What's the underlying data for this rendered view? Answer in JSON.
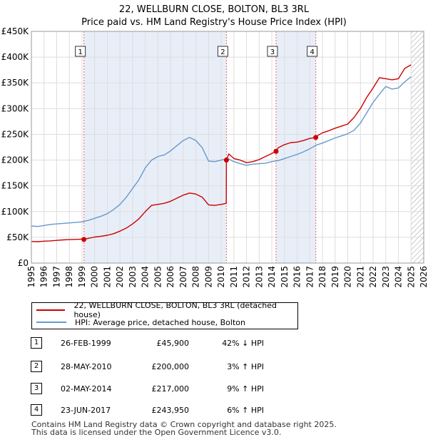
{
  "title_line1": "22, WELLBURN CLOSE, BOLTON, BL3 3RL",
  "title_line2": "Price paid vs. HM Land Registry's House Price Index (HPI)",
  "chart_data": {
    "type": "line",
    "title": "22, WELLBURN CLOSE, BOLTON, BL3 3RL",
    "subtitle": "Price paid vs. HM Land Registry's House Price Index (HPI)",
    "xlim": [
      1995,
      2026
    ],
    "ylim": [
      0,
      450000
    ],
    "x_ticks": [
      1995,
      1996,
      1997,
      1998,
      1999,
      2000,
      2001,
      2002,
      2003,
      2004,
      2005,
      2006,
      2007,
      2008,
      2009,
      2010,
      2011,
      2012,
      2013,
      2014,
      2015,
      2016,
      2017,
      2018,
      2019,
      2020,
      2021,
      2022,
      2023,
      2024,
      2025,
      2026
    ],
    "x_tick_labels": [
      "1995",
      "1996",
      "1997",
      "1998",
      "1999",
      "2000",
      "2001",
      "2002",
      "2003",
      "2004",
      "2005",
      "2006",
      "2007",
      "2008",
      "2009",
      "2010",
      "2011",
      "2012",
      "2013",
      "2014",
      "2015",
      "2016",
      "2017",
      "2018",
      "2019",
      "2020",
      "2021",
      "2022",
      "2023",
      "2024",
      "2025",
      "2026"
    ],
    "y_ticks": [
      0,
      50000,
      100000,
      150000,
      200000,
      250000,
      300000,
      350000,
      400000,
      450000
    ],
    "y_tick_labels": [
      "£0",
      "£50K",
      "£100K",
      "£150K",
      "£200K",
      "£250K",
      "£300K",
      "£350K",
      "£400K",
      "£450K"
    ],
    "grid": true,
    "colors": {
      "property": "#cc0000",
      "hpi": "#6699cc",
      "shade": "#e8eef8",
      "marker_line": "#ee6666"
    },
    "series": [
      {
        "name": "22, WELLBURN CLOSE, BOLTON, BL3 3RL (detached house)",
        "x": [
          1995.0,
          1995.5,
          1996.0,
          1996.5,
          1997.0,
          1997.5,
          1998.0,
          1998.5,
          1999.0,
          1999.15,
          1999.5,
          2000.0,
          2000.5,
          2001.0,
          2001.5,
          2002.0,
          2002.5,
          2003.0,
          2003.5,
          2004.0,
          2004.5,
          2005.0,
          2005.5,
          2006.0,
          2006.5,
          2007.0,
          2007.5,
          2008.0,
          2008.5,
          2009.0,
          2009.5,
          2010.0,
          2010.4,
          2010.41,
          2010.6,
          2011.0,
          2011.5,
          2012.0,
          2012.5,
          2013.0,
          2013.5,
          2014.0,
          2014.33,
          2014.5,
          2015.0,
          2015.5,
          2016.0,
          2016.5,
          2017.0,
          2017.47,
          2017.5,
          2018.0,
          2018.5,
          2019.0,
          2019.5,
          2020.0,
          2020.5,
          2021.0,
          2021.5,
          2022.0,
          2022.5,
          2023.0,
          2023.5,
          2024.0,
          2024.5,
          2025.0
        ],
        "values": [
          42000,
          41500,
          42500,
          43000,
          44000,
          45000,
          45500,
          46000,
          46500,
          45900,
          48000,
          50500,
          52000,
          54000,
          57000,
          62000,
          68000,
          76000,
          86000,
          100000,
          112000,
          114000,
          116000,
          120000,
          126000,
          132000,
          136000,
          134000,
          128000,
          113000,
          112000,
          114000,
          116000,
          200000,
          212000,
          203000,
          200000,
          195000,
          197000,
          201000,
          207000,
          213000,
          217000,
          224000,
          230000,
          234000,
          235000,
          238000,
          242000,
          243950,
          246000,
          253000,
          257000,
          262000,
          266000,
          270000,
          283000,
          300000,
          322000,
          340000,
          360000,
          358000,
          356000,
          358000,
          378000,
          385000
        ]
      },
      {
        "name": "HPI: Average price, detached house, Bolton",
        "x": [
          1995.0,
          1995.5,
          1996.0,
          1996.5,
          1997.0,
          1997.5,
          1998.0,
          1998.5,
          1999.0,
          1999.5,
          2000.0,
          2000.5,
          2001.0,
          2001.5,
          2002.0,
          2002.5,
          2003.0,
          2003.5,
          2004.0,
          2004.5,
          2005.0,
          2005.5,
          2006.0,
          2006.5,
          2007.0,
          2007.5,
          2008.0,
          2008.5,
          2009.0,
          2009.5,
          2010.0,
          2010.5,
          2011.0,
          2011.5,
          2012.0,
          2012.5,
          2013.0,
          2013.5,
          2014.0,
          2014.5,
          2015.0,
          2015.5,
          2016.0,
          2016.5,
          2017.0,
          2017.5,
          2018.0,
          2018.5,
          2019.0,
          2019.5,
          2020.0,
          2020.5,
          2021.0,
          2021.5,
          2022.0,
          2022.5,
          2023.0,
          2023.5,
          2024.0,
          2024.5,
          2025.0
        ],
        "values": [
          72000,
          71000,
          73000,
          75000,
          76000,
          77000,
          78000,
          79000,
          80000,
          83000,
          87000,
          91000,
          96000,
          104000,
          114000,
          128000,
          145000,
          162000,
          185000,
          200000,
          207000,
          210000,
          218000,
          228000,
          238000,
          244000,
          238000,
          224000,
          198000,
          197000,
          200000,
          203000,
          197000,
          193000,
          190000,
          192000,
          193000,
          194000,
          197000,
          199000,
          203000,
          207000,
          211000,
          216000,
          222000,
          229000,
          233000,
          238000,
          243000,
          247000,
          251000,
          258000,
          272000,
          292000,
          312000,
          328000,
          343000,
          338000,
          340000,
          352000,
          362000
        ]
      }
    ],
    "transactions": [
      {
        "label": "1",
        "x": 1999.15,
        "value": 45900
      },
      {
        "label": "2",
        "x": 2010.41,
        "value": 200000
      },
      {
        "label": "3",
        "x": 2014.33,
        "value": 217000
      },
      {
        "label": "4",
        "x": 2017.47,
        "value": 243950
      }
    ],
    "shaded_ranges": [
      [
        1999.15,
        2010.41
      ],
      [
        2014.33,
        2017.47
      ]
    ],
    "hatched_from": 2025.0
  },
  "legend": {
    "property_label": "22, WELLBURN CLOSE, BOLTON, BL3 3RL (detached house)",
    "hpi_label": "HPI: Average price, detached house, Bolton"
  },
  "table": [
    {
      "num": "1",
      "date": "26-FEB-1999",
      "price": "£45,900",
      "hpi": "42% ↓ HPI"
    },
    {
      "num": "2",
      "date": "28-MAY-2010",
      "price": "£200,000",
      "hpi": "3% ↑ HPI"
    },
    {
      "num": "3",
      "date": "02-MAY-2014",
      "price": "£217,000",
      "hpi": "9% ↑ HPI"
    },
    {
      "num": "4",
      "date": "23-JUN-2017",
      "price": "£243,950",
      "hpi": "6% ↑ HPI"
    }
  ],
  "footer": {
    "line1": "Contains HM Land Registry data © Crown copyright and database right 2025.",
    "line2": "This data is licensed under the Open Government Licence v3.0."
  }
}
